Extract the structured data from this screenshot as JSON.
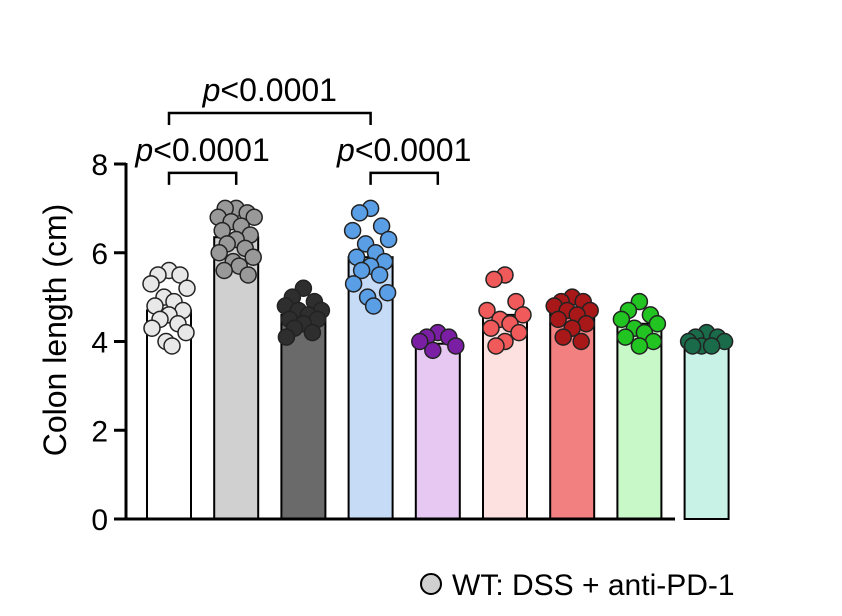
{
  "chart_data": {
    "type": "bar",
    "ylabel": "Colon length (cm)",
    "ylim": [
      0,
      8
    ],
    "yticks": [
      0,
      2,
      4,
      6,
      8
    ],
    "grid": false,
    "bars": [
      {
        "mean": 4.7,
        "fill": "#ffffff",
        "dot": "#e8e8e8",
        "points": [
          5.6,
          5.5,
          5.5,
          5.3,
          5.2,
          5.0,
          4.9,
          4.8,
          4.7,
          4.6,
          4.5,
          4.4,
          4.3,
          4.2,
          4.0,
          3.9
        ]
      },
      {
        "mean": 6.35,
        "fill": "#d0d0d0",
        "dot": "#999999",
        "points": [
          7.0,
          7.0,
          6.9,
          6.8,
          6.8,
          6.7,
          6.6,
          6.5,
          6.4,
          6.3,
          6.2,
          6.1,
          6.0,
          5.9,
          5.8,
          5.7,
          5.6,
          5.5
        ]
      },
      {
        "mean": 4.6,
        "fill": "#6a6a6a",
        "dot": "#2e2e2e",
        "points": [
          5.2,
          5.0,
          4.9,
          4.8,
          4.7,
          4.7,
          4.6,
          4.5,
          4.5,
          4.4,
          4.3,
          4.2,
          4.1
        ]
      },
      {
        "mean": 5.9,
        "fill": "#c6dbf5",
        "dot": "#5a9fe6",
        "points": [
          7.0,
          6.9,
          6.6,
          6.5,
          6.3,
          6.2,
          6.0,
          5.9,
          5.8,
          5.7,
          5.6,
          5.5,
          5.3,
          5.1,
          5.0,
          4.8
        ]
      },
      {
        "mean": 3.95,
        "fill": "#e6c8f2",
        "dot": "#7a1fa3",
        "points": [
          4.2,
          4.1,
          4.1,
          4.0,
          3.9,
          3.8
        ]
      },
      {
        "mean": 4.6,
        "fill": "#fde0e0",
        "dot": "#f05a5a",
        "points": [
          5.5,
          5.4,
          4.9,
          4.7,
          4.6,
          4.5,
          4.4,
          4.3,
          4.2,
          4.0,
          3.9
        ]
      },
      {
        "mean": 4.65,
        "fill": "#f28080",
        "dot": "#a81818",
        "points": [
          5.0,
          4.9,
          4.9,
          4.8,
          4.7,
          4.7,
          4.6,
          4.5,
          4.4,
          4.3,
          4.1,
          4.0
        ]
      },
      {
        "mean": 4.4,
        "fill": "#c8f7c8",
        "dot": "#22c422",
        "points": [
          4.9,
          4.7,
          4.6,
          4.5,
          4.4,
          4.3,
          4.2,
          4.1,
          4.0,
          3.9
        ]
      },
      {
        "mean": 4.0,
        "fill": "#c8f2e6",
        "dot": "#1a6b4a",
        "points": [
          4.2,
          4.1,
          4.1,
          4.0,
          4.0,
          3.9,
          3.9,
          3.9
        ]
      }
    ],
    "comparisons": [
      {
        "from": 0,
        "to": 3,
        "label": "p<0.0001",
        "y": 9.15
      },
      {
        "from": 0,
        "to": 1,
        "label": "p<0.0001",
        "y": 7.8
      },
      {
        "from": 3,
        "to": 4,
        "label": "p<0.0001",
        "y": 7.8
      }
    ],
    "legend": {
      "label": "WT: DSS + anti-PD-1",
      "marker_color": "#d0d0d0",
      "placement": "bottom-right"
    }
  }
}
